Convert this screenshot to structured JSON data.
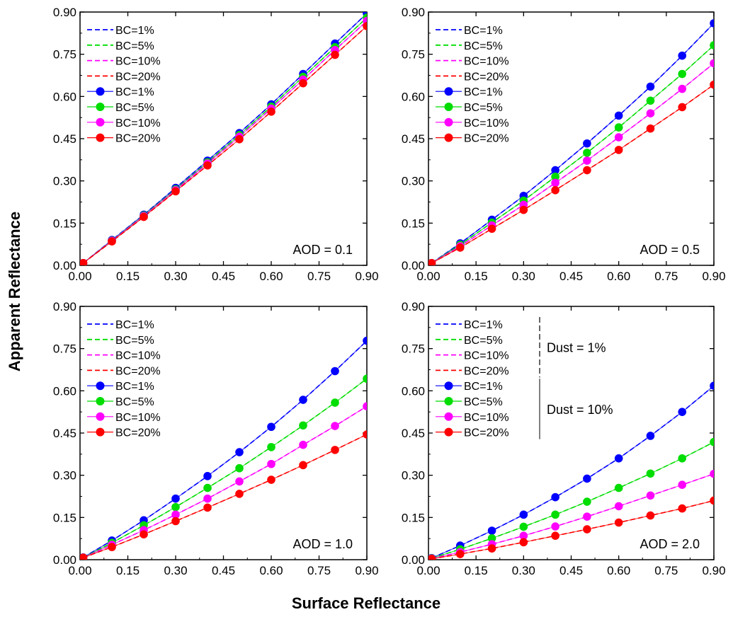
{
  "figure": {
    "xlabel": "Surface Reflectance",
    "ylabel": "Apparent Reflectance"
  },
  "colors": {
    "BC=1%": "#0000ff",
    "BC=5%": "#00dd00",
    "BC=10%": "#ff00ff",
    "BC=20%": "#ff0000"
  },
  "legend_labels": [
    "BC=1%",
    "BC=5%",
    "BC=10%",
    "BC=20%",
    "BC=1%",
    "BC=5%",
    "BC=10%",
    "BC=20%"
  ],
  "dust_labels": [
    "Dust = 1%",
    "Dust = 10%"
  ],
  "chart_data": [
    {
      "type": "line",
      "annotation": "AOD  = 0.1",
      "x": [
        0.01,
        0.1,
        0.2,
        0.3,
        0.4,
        0.5,
        0.6,
        0.7,
        0.8,
        0.9
      ],
      "xlim": [
        0,
        0.9
      ],
      "ylim": [
        0,
        0.9
      ],
      "xticks": [
        "0.00",
        "0.15",
        "0.30",
        "0.45",
        "0.60",
        "0.75",
        "0.90"
      ],
      "yticks": [
        "0.00",
        "0.15",
        "0.30",
        "0.45",
        "0.60",
        "0.75",
        "0.90"
      ],
      "legend_placement": "top-left",
      "series": [
        {
          "name": "BC=1%",
          "group": "Dust = 10%",
          "color": "#0000ff",
          "values": [
            0.008,
            0.09,
            0.18,
            0.275,
            0.372,
            0.47,
            0.572,
            0.68,
            0.788,
            0.895
          ]
        },
        {
          "name": "BC=5%",
          "group": "Dust = 10%",
          "color": "#00dd00",
          "values": [
            0.008,
            0.088,
            0.177,
            0.27,
            0.366,
            0.463,
            0.564,
            0.67,
            0.775,
            0.88
          ]
        },
        {
          "name": "BC=10%",
          "group": "Dust = 10%",
          "color": "#ff00ff",
          "values": [
            0.008,
            0.087,
            0.175,
            0.267,
            0.362,
            0.457,
            0.557,
            0.66,
            0.765,
            0.868
          ]
        },
        {
          "name": "BC=20%",
          "group": "Dust = 10%",
          "color": "#ff0000",
          "values": [
            0.008,
            0.085,
            0.172,
            0.263,
            0.355,
            0.448,
            0.546,
            0.647,
            0.748,
            0.85
          ]
        }
      ]
    },
    {
      "type": "line",
      "annotation": "AOD  = 0.5",
      "x": [
        0.01,
        0.1,
        0.2,
        0.3,
        0.4,
        0.5,
        0.6,
        0.7,
        0.8,
        0.9
      ],
      "xlim": [
        0,
        0.9
      ],
      "ylim": [
        0,
        0.9
      ],
      "xticks": [
        "0.00",
        "0.15",
        "0.30",
        "0.45",
        "0.60",
        "0.75",
        "0.90"
      ],
      "yticks": [
        "0.00",
        "0.15",
        "0.30",
        "0.45",
        "0.60",
        "0.75",
        "0.90"
      ],
      "legend_placement": "top-left",
      "series": [
        {
          "name": "BC=1%",
          "group": "Dust = 10%",
          "color": "#0000ff",
          "values": [
            0.008,
            0.078,
            0.162,
            0.247,
            0.338,
            0.433,
            0.532,
            0.635,
            0.745,
            0.86
          ]
        },
        {
          "name": "BC=5%",
          "group": "Dust = 10%",
          "color": "#00dd00",
          "values": [
            0.008,
            0.073,
            0.152,
            0.23,
            0.315,
            0.4,
            0.49,
            0.585,
            0.68,
            0.782
          ]
        },
        {
          "name": "BC=10%",
          "group": "Dust = 10%",
          "color": "#ff00ff",
          "values": [
            0.008,
            0.068,
            0.142,
            0.215,
            0.293,
            0.372,
            0.455,
            0.54,
            0.627,
            0.718
          ]
        },
        {
          "name": "BC=20%",
          "group": "Dust = 10%",
          "color": "#ff0000",
          "values": [
            0.008,
            0.063,
            0.13,
            0.197,
            0.267,
            0.338,
            0.41,
            0.486,
            0.562,
            0.642
          ]
        }
      ]
    },
    {
      "type": "line",
      "annotation": "AOD  = 1.0",
      "x": [
        0.01,
        0.1,
        0.2,
        0.3,
        0.4,
        0.5,
        0.6,
        0.7,
        0.8,
        0.9
      ],
      "xlim": [
        0,
        0.9
      ],
      "ylim": [
        0,
        0.9
      ],
      "xticks": [
        "0.00",
        "0.15",
        "0.30",
        "0.45",
        "0.60",
        "0.75",
        "0.90"
      ],
      "yticks": [
        "0.00",
        "0.15",
        "0.30",
        "0.45",
        "0.60",
        "0.75",
        "0.90"
      ],
      "legend_placement": "top-left",
      "series": [
        {
          "name": "BC=1%",
          "group": "Dust = 10%",
          "color": "#0000ff",
          "values": [
            0.008,
            0.068,
            0.14,
            0.217,
            0.297,
            0.382,
            0.472,
            0.568,
            0.67,
            0.778
          ]
        },
        {
          "name": "BC=5%",
          "group": "Dust = 10%",
          "color": "#00dd00",
          "values": [
            0.007,
            0.06,
            0.122,
            0.187,
            0.255,
            0.325,
            0.4,
            0.477,
            0.558,
            0.643
          ]
        },
        {
          "name": "BC=10%",
          "group": "Dust = 10%",
          "color": "#ff00ff",
          "values": [
            0.007,
            0.053,
            0.105,
            0.16,
            0.217,
            0.278,
            0.34,
            0.408,
            0.475,
            0.545
          ]
        },
        {
          "name": "BC=20%",
          "group": "Dust = 10%",
          "color": "#ff0000",
          "values": [
            0.007,
            0.045,
            0.09,
            0.137,
            0.185,
            0.234,
            0.284,
            0.336,
            0.39,
            0.445
          ]
        }
      ]
    },
    {
      "type": "line",
      "annotation": "AOD  = 2.0",
      "x": [
        0.01,
        0.1,
        0.2,
        0.3,
        0.4,
        0.5,
        0.6,
        0.7,
        0.8,
        0.9
      ],
      "xlim": [
        0,
        0.9
      ],
      "ylim": [
        0,
        0.9
      ],
      "xticks": [
        "0.00",
        "0.15",
        "0.30",
        "0.45",
        "0.60",
        "0.75",
        "0.90"
      ],
      "yticks": [
        "0.00",
        "0.15",
        "0.30",
        "0.45",
        "0.60",
        "0.75",
        "0.90"
      ],
      "legend_placement": "top-left",
      "series": [
        {
          "name": "BC=1%",
          "group": "Dust = 10%",
          "color": "#0000ff",
          "values": [
            0.006,
            0.05,
            0.103,
            0.16,
            0.222,
            0.288,
            0.36,
            0.44,
            0.525,
            0.618
          ]
        },
        {
          "name": "BC=5%",
          "group": "Dust = 10%",
          "color": "#00dd00",
          "values": [
            0.005,
            0.037,
            0.076,
            0.117,
            0.16,
            0.206,
            0.255,
            0.306,
            0.36,
            0.418
          ]
        },
        {
          "name": "BC=10%",
          "group": "Dust = 10%",
          "color": "#ff00ff",
          "values": [
            0.004,
            0.027,
            0.055,
            0.085,
            0.118,
            0.153,
            0.19,
            0.228,
            0.266,
            0.305
          ]
        },
        {
          "name": "BC=20%",
          "group": "Dust = 10%",
          "color": "#ff0000",
          "values": [
            0.003,
            0.02,
            0.04,
            0.062,
            0.085,
            0.108,
            0.132,
            0.157,
            0.182,
            0.21
          ]
        }
      ]
    }
  ]
}
